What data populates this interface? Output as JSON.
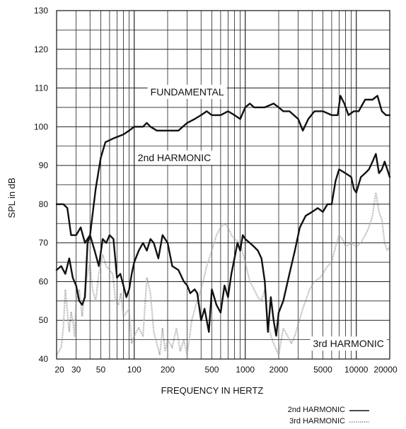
{
  "chart_data": {
    "type": "line",
    "xlabel": "FREQUENCY IN HERTZ",
    "ylabel": "SPL in dB",
    "xscale": "log",
    "xlim": [
      20,
      20000
    ],
    "ylim": [
      40,
      130
    ],
    "grid": true,
    "x_tick_labels": [
      {
        "value": 20,
        "label": "20"
      },
      {
        "value": 30,
        "label": "30"
      },
      {
        "value": 50,
        "label": "50"
      },
      {
        "value": 100,
        "label": "100"
      },
      {
        "value": 200,
        "label": "200"
      },
      {
        "value": 500,
        "label": "500"
      },
      {
        "value": 1000,
        "label": "1000"
      },
      {
        "value": 2000,
        "label": "2000"
      },
      {
        "value": 5000,
        "label": "5000"
      },
      {
        "value": 10000,
        "label": "10000"
      },
      {
        "value": 20000,
        "label": "20000"
      }
    ],
    "y_tick_labels": [
      "40",
      "50",
      "60",
      "70",
      "80",
      "90",
      "100",
      "110",
      "120",
      "130"
    ],
    "annotations": [
      {
        "text": "FUNDAMENTAL",
        "x": 300,
        "y": 109
      },
      {
        "text": "2nd HARMONIC",
        "x": 230,
        "y": 92
      },
      {
        "text": "3rd HARMONIC",
        "x": 8500,
        "y": 44
      }
    ],
    "legend": {
      "placement": "bottom-right",
      "entries": [
        {
          "label": "2nd HARMONIC",
          "style": "solid"
        },
        {
          "label": "3rd HARMONIC",
          "style": "dotted"
        }
      ]
    },
    "series": [
      {
        "key": "fundamental",
        "color": "#111111",
        "style": "solid",
        "points": [
          [
            20,
            80
          ],
          [
            23,
            80
          ],
          [
            25,
            79
          ],
          [
            27,
            72
          ],
          [
            30,
            72
          ],
          [
            33,
            74
          ],
          [
            36,
            70
          ],
          [
            40,
            72
          ],
          [
            45,
            84
          ],
          [
            50,
            92
          ],
          [
            55,
            96
          ],
          [
            65,
            97
          ],
          [
            80,
            98
          ],
          [
            90,
            99
          ],
          [
            100,
            100
          ],
          [
            120,
            100
          ],
          [
            130,
            101
          ],
          [
            140,
            100
          ],
          [
            160,
            99
          ],
          [
            200,
            99
          ],
          [
            250,
            99
          ],
          [
            300,
            101
          ],
          [
            350,
            102
          ],
          [
            400,
            103
          ],
          [
            450,
            104
          ],
          [
            500,
            103
          ],
          [
            600,
            103
          ],
          [
            700,
            104
          ],
          [
            800,
            103
          ],
          [
            900,
            102
          ],
          [
            1000,
            105
          ],
          [
            1100,
            106
          ],
          [
            1200,
            105
          ],
          [
            1300,
            105
          ],
          [
            1500,
            105
          ],
          [
            1800,
            106
          ],
          [
            2000,
            105
          ],
          [
            2200,
            104
          ],
          [
            2500,
            104
          ],
          [
            3000,
            102
          ],
          [
            3300,
            99
          ],
          [
            3700,
            102
          ],
          [
            4200,
            104
          ],
          [
            5000,
            104
          ],
          [
            6000,
            103
          ],
          [
            6800,
            103
          ],
          [
            7200,
            108
          ],
          [
            7800,
            106
          ],
          [
            8500,
            103
          ],
          [
            9500,
            104
          ],
          [
            10500,
            104
          ],
          [
            12000,
            107
          ],
          [
            14000,
            107
          ],
          [
            15500,
            108
          ],
          [
            17000,
            104
          ],
          [
            18500,
            103
          ],
          [
            20000,
            103
          ]
        ]
      },
      {
        "key": "second",
        "color": "#111111",
        "style": "solid",
        "points": [
          [
            20,
            63
          ],
          [
            22,
            64
          ],
          [
            24,
            62
          ],
          [
            26,
            66
          ],
          [
            28,
            61
          ],
          [
            30,
            59
          ],
          [
            32,
            55
          ],
          [
            34,
            54
          ],
          [
            36,
            56
          ],
          [
            38,
            70
          ],
          [
            40,
            72
          ],
          [
            44,
            68
          ],
          [
            48,
            64
          ],
          [
            52,
            71
          ],
          [
            56,
            70
          ],
          [
            60,
            72
          ],
          [
            65,
            71
          ],
          [
            70,
            61
          ],
          [
            75,
            62
          ],
          [
            80,
            59
          ],
          [
            85,
            56
          ],
          [
            90,
            58
          ],
          [
            95,
            62
          ],
          [
            100,
            65
          ],
          [
            110,
            68
          ],
          [
            120,
            70
          ],
          [
            130,
            68
          ],
          [
            140,
            71
          ],
          [
            150,
            70
          ],
          [
            165,
            66
          ],
          [
            180,
            72
          ],
          [
            200,
            70
          ],
          [
            220,
            64
          ],
          [
            250,
            63
          ],
          [
            280,
            60
          ],
          [
            300,
            59
          ],
          [
            320,
            57
          ],
          [
            350,
            58
          ],
          [
            370,
            57
          ],
          [
            400,
            50
          ],
          [
            430,
            53
          ],
          [
            470,
            47
          ],
          [
            500,
            58
          ],
          [
            550,
            54
          ],
          [
            600,
            52
          ],
          [
            650,
            59
          ],
          [
            700,
            56
          ],
          [
            750,
            62
          ],
          [
            800,
            66
          ],
          [
            850,
            70
          ],
          [
            900,
            68
          ],
          [
            950,
            72
          ],
          [
            1000,
            71
          ],
          [
            1100,
            70
          ],
          [
            1200,
            69
          ],
          [
            1300,
            68
          ],
          [
            1400,
            66
          ],
          [
            1500,
            60
          ],
          [
            1600,
            47
          ],
          [
            1700,
            56
          ],
          [
            1800,
            50
          ],
          [
            1900,
            46
          ],
          [
            2000,
            52
          ],
          [
            2200,
            55
          ],
          [
            2500,
            62
          ],
          [
            2800,
            68
          ],
          [
            3100,
            74
          ],
          [
            3500,
            77
          ],
          [
            4000,
            78
          ],
          [
            4500,
            79
          ],
          [
            5000,
            78
          ],
          [
            5500,
            80
          ],
          [
            6000,
            80
          ],
          [
            6500,
            86
          ],
          [
            7000,
            89
          ],
          [
            8000,
            88
          ],
          [
            9000,
            87
          ],
          [
            9500,
            84
          ],
          [
            10000,
            83
          ],
          [
            11000,
            87
          ],
          [
            12000,
            88
          ],
          [
            13000,
            89
          ],
          [
            14000,
            91
          ],
          [
            15000,
            93
          ],
          [
            16000,
            88
          ],
          [
            17000,
            89
          ],
          [
            18000,
            91
          ],
          [
            19000,
            89
          ],
          [
            20000,
            87
          ]
        ]
      },
      {
        "key": "third",
        "color": "#999999",
        "style": "dotted",
        "points": [
          [
            20,
            41
          ],
          [
            21,
            42
          ],
          [
            22,
            43
          ],
          [
            23,
            48
          ],
          [
            24,
            58
          ],
          [
            26,
            47
          ],
          [
            27,
            52
          ],
          [
            28,
            50
          ],
          [
            29,
            46
          ],
          [
            30,
            55
          ],
          [
            32,
            58
          ],
          [
            34,
            51
          ],
          [
            36,
            58
          ],
          [
            38,
            62
          ],
          [
            40,
            65
          ],
          [
            42,
            58
          ],
          [
            45,
            55
          ],
          [
            48,
            62
          ],
          [
            52,
            67
          ],
          [
            56,
            64
          ],
          [
            60,
            63
          ],
          [
            64,
            62
          ],
          [
            68,
            55
          ],
          [
            72,
            54
          ],
          [
            76,
            57
          ],
          [
            80,
            51
          ],
          [
            85,
            52
          ],
          [
            90,
            53
          ],
          [
            95,
            44
          ],
          [
            100,
            46
          ],
          [
            110,
            48
          ],
          [
            120,
            46
          ],
          [
            130,
            61
          ],
          [
            140,
            57
          ],
          [
            150,
            47
          ],
          [
            160,
            44
          ],
          [
            170,
            41
          ],
          [
            180,
            48
          ],
          [
            190,
            42
          ],
          [
            200,
            45
          ],
          [
            220,
            43
          ],
          [
            240,
            48
          ],
          [
            260,
            42
          ],
          [
            280,
            45
          ],
          [
            300,
            41
          ],
          [
            330,
            50
          ],
          [
            360,
            54
          ],
          [
            400,
            58
          ],
          [
            450,
            64
          ],
          [
            500,
            68
          ],
          [
            550,
            72
          ],
          [
            600,
            74
          ],
          [
            650,
            75
          ],
          [
            700,
            74
          ],
          [
            750,
            72
          ],
          [
            800,
            71
          ],
          [
            900,
            70
          ],
          [
            1000,
            65
          ],
          [
            1100,
            60
          ],
          [
            1200,
            58
          ],
          [
            1300,
            56
          ],
          [
            1400,
            55
          ],
          [
            1500,
            58
          ],
          [
            1600,
            49
          ],
          [
            1700,
            46
          ],
          [
            1800,
            44
          ],
          [
            2000,
            41
          ],
          [
            2200,
            48
          ],
          [
            2400,
            46
          ],
          [
            2600,
            44
          ],
          [
            2800,
            46
          ],
          [
            3000,
            49
          ],
          [
            3300,
            53
          ],
          [
            3800,
            58
          ],
          [
            4200,
            60
          ],
          [
            4700,
            61
          ],
          [
            5000,
            62
          ],
          [
            5500,
            64
          ],
          [
            6000,
            65
          ],
          [
            6500,
            69
          ],
          [
            7000,
            72
          ],
          [
            7500,
            71
          ],
          [
            8000,
            69
          ],
          [
            9000,
            70
          ],
          [
            10000,
            69
          ],
          [
            11000,
            70
          ],
          [
            12000,
            72
          ],
          [
            13000,
            74
          ],
          [
            14000,
            77
          ],
          [
            15000,
            83
          ],
          [
            16000,
            78
          ],
          [
            17000,
            76
          ],
          [
            18000,
            70
          ],
          [
            19000,
            68
          ],
          [
            20000,
            69
          ]
        ]
      }
    ]
  }
}
